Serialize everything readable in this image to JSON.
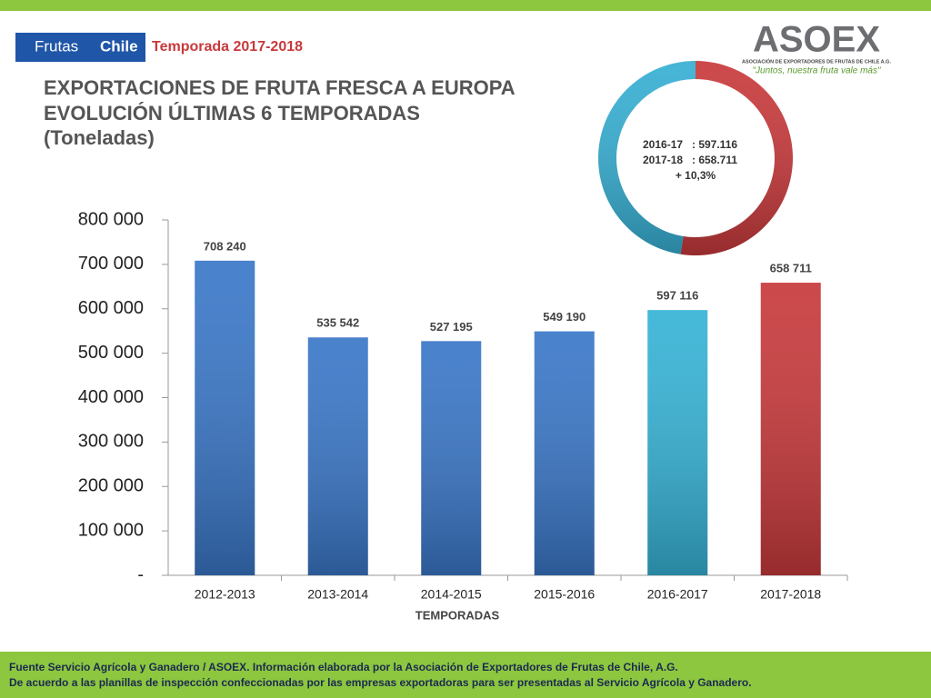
{
  "header": {
    "logo": [
      "Frutas",
      "Chile"
    ],
    "season": "Temporada 2017-2018",
    "title_lines": [
      "EXPORTACIONES DE FRUTA FRESCA A EUROPA",
      "EVOLUCIÓN ÚLTIMAS 6 TEMPORADAS",
      "(Toneladas)"
    ],
    "asoex": "ASOEX",
    "asoex_subtitle": "ASOCIACIÓN DE EXPORTADORES DE FRUTAS DE CHILE A.G.",
    "asoex_slogan": "\"Juntos, nuestra fruta vale más\""
  },
  "chart_data": [
    {
      "type": "bar",
      "xlabel": "TEMPORADAS",
      "categories": [
        "2012-2013",
        "2013-2014",
        "2014-2015",
        "2015-2016",
        "2016-2017",
        "2017-2018"
      ],
      "values": [
        708240,
        535542,
        527195,
        549190,
        597116,
        658711
      ],
      "value_labels": [
        "708 240",
        "535 542",
        "527 195",
        "549 190",
        "597 116",
        "658 711"
      ],
      "colors": [
        "#3a77c8",
        "#3a77c8",
        "#3a77c8",
        "#3a77c8",
        "#36b3d6",
        "#c8393b"
      ],
      "ylim": [
        0,
        800000
      ],
      "yticks": [
        {
          "value": 0,
          "label": "-"
        },
        {
          "value": 100000,
          "label": "100 000"
        },
        {
          "value": 200000,
          "label": "200 000"
        },
        {
          "value": 300000,
          "label": "300 000"
        },
        {
          "value": 400000,
          "label": "400 000"
        },
        {
          "value": 500000,
          "label": "500 000"
        },
        {
          "value": 600000,
          "label": "600 000"
        },
        {
          "value": 700000,
          "label": "700 000"
        },
        {
          "value": 800000,
          "label": "800 000"
        }
      ]
    },
    {
      "type": "pie",
      "categories": [
        "2016-17",
        "2017-18"
      ],
      "values": [
        597116,
        658711
      ],
      "value_labels": [
        ": 597.116",
        ": 658.711"
      ],
      "colors": [
        "#36afd3",
        "#c8393b"
      ],
      "annotation": "+ 10,3%"
    }
  ],
  "footer": [
    "Fuente Servicio Agrícola y Ganadero / ASOEX. Información elaborada por la Asociación de Exportadores de  Frutas de Chile, A.G.",
    "De acuerdo a las planillas de inspección confeccionadas por las empresas exportadoras  para ser presentadas al Servicio Agrícola y Ganadero."
  ]
}
